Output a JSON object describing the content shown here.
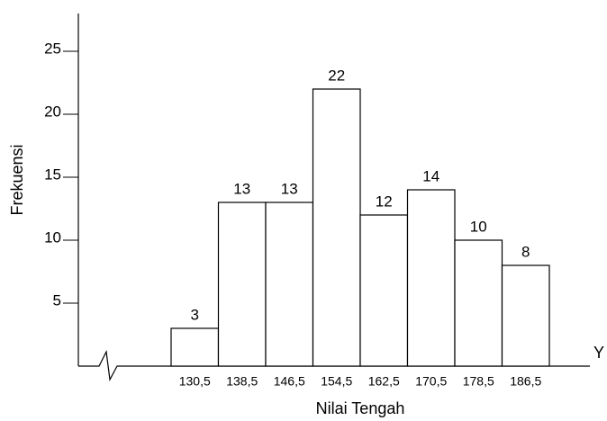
{
  "chart_data": {
    "type": "bar",
    "y_label": "Frekuensi",
    "x_label": "Nilai Tengah",
    "x_axis_end_label": "Y",
    "categories": [
      "130,5",
      "138,5",
      "146,5",
      "154,5",
      "162,5",
      "170,5",
      "178,5",
      "186,5"
    ],
    "values": [
      3,
      13,
      13,
      22,
      12,
      14,
      10,
      8
    ],
    "color": "#ffffff",
    "ylim": [
      0,
      28
    ],
    "yticks": [
      5,
      10,
      15,
      20,
      25
    ],
    "grid": false
  }
}
